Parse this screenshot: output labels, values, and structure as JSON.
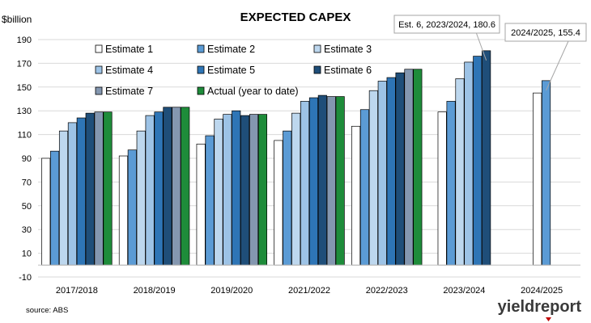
{
  "chart_data": {
    "type": "bar",
    "title": "EXPECTED CAPEX",
    "ylabel": "$billion",
    "xlabel": "",
    "ylim": [
      -10,
      190
    ],
    "yticks": [
      -10,
      10,
      30,
      50,
      70,
      90,
      110,
      130,
      150,
      170,
      190
    ],
    "grid": true,
    "legend_position": "top",
    "categories": [
      "2017/2018",
      "2018/2019",
      "2019/2020",
      "2021/2022",
      "2022/2023",
      "2023/2024",
      "2024/2025"
    ],
    "series": [
      {
        "name": "Estimate 1",
        "color": "#ffffff",
        "values": [
          90,
          92,
          102,
          105,
          117,
          129,
          145
        ]
      },
      {
        "name": "Estimate 2",
        "color": "#5b9bd5",
        "values": [
          96,
          97,
          109,
          113,
          131,
          138,
          155.4
        ]
      },
      {
        "name": "Estimate 3",
        "color": "#bdd7ee",
        "values": [
          113,
          113,
          123,
          128,
          147,
          157,
          null
        ]
      },
      {
        "name": "Estimate 4",
        "color": "#9dc3e6",
        "values": [
          120,
          126,
          127,
          138,
          155,
          171,
          null
        ]
      },
      {
        "name": "Estimate 5",
        "color": "#2e75b6",
        "values": [
          124,
          129,
          130,
          141,
          158,
          176,
          null
        ]
      },
      {
        "name": "Estimate 6",
        "color": "#1f4e79",
        "values": [
          128,
          133,
          126,
          143,
          162,
          180.6,
          null
        ]
      },
      {
        "name": "Estimate 7",
        "color": "#8497b0",
        "values": [
          129,
          133,
          127,
          142,
          165,
          null,
          null
        ]
      },
      {
        "name": "Actual (year to date)",
        "color": "#1e8c3a",
        "values": [
          129,
          133,
          127,
          142,
          165,
          null,
          null
        ]
      }
    ],
    "annotations": [
      {
        "text": "Est. 6, 2023/2024, 180.6",
        "category": "2023/2024",
        "series": "Estimate 6"
      },
      {
        "text": "2024/2025, 155.4",
        "category": "2024/2025",
        "series": "Estimate 2"
      }
    ]
  },
  "source_text": "source: ABS",
  "logo_text": "yieldreport"
}
